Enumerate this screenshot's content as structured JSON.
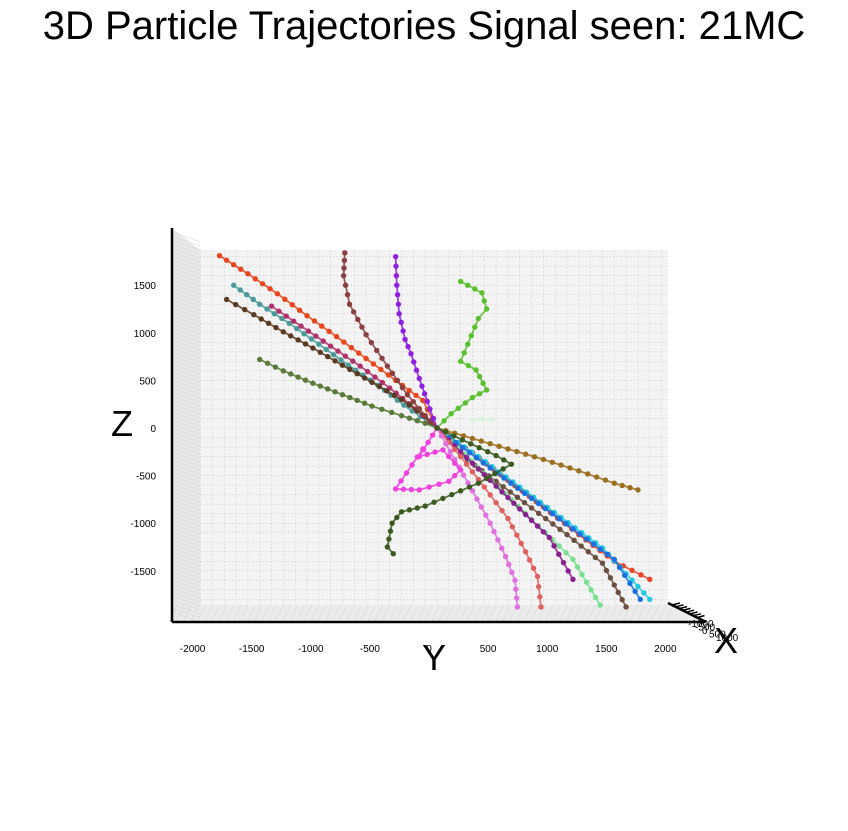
{
  "chart_data": {
    "type": "scatter",
    "title": "3D Particle Trajectories Signal seen: 21MC",
    "xlabel": "X",
    "ylabel": "Y",
    "zlabel": "Z",
    "view": "projected onto the Y-Z plane (X axis viewed end-on)",
    "y_ticks": [
      -2000,
      -1500,
      -1000,
      -500,
      0,
      500,
      1000,
      1500,
      2000
    ],
    "z_ticks": [
      -1500,
      -1000,
      -500,
      0,
      500,
      1000,
      1500
    ],
    "x_ticks": [
      -1000,
      -500,
      0,
      500,
      1000
    ],
    "y_range": [
      -2200,
      2000
    ],
    "z_range": [
      -2050,
      1850
    ],
    "grid": true,
    "background": "#f4f4f4",
    "series": [
      {
        "color": "#e8451c",
        "points": [
          [
            -1840,
            1810
          ],
          [
            -1600,
            1620
          ],
          [
            -1350,
            1410
          ],
          [
            -1100,
            1180
          ],
          [
            -850,
            960
          ],
          [
            -600,
            730
          ],
          [
            -350,
            500
          ],
          [
            -120,
            290
          ],
          [
            0,
            0
          ]
        ]
      },
      {
        "color": "#4a9a9a",
        "points": [
          [
            -1720,
            1500
          ],
          [
            -1500,
            1300
          ],
          [
            -1250,
            1100
          ],
          [
            -1000,
            880
          ],
          [
            -750,
            660
          ],
          [
            -500,
            450
          ],
          [
            -280,
            240
          ],
          [
            0,
            0
          ]
        ]
      },
      {
        "color": "#b0306a",
        "points": [
          [
            -1400,
            1280
          ],
          [
            -1150,
            1070
          ],
          [
            -900,
            860
          ],
          [
            -650,
            650
          ],
          [
            -400,
            420
          ],
          [
            -180,
            200
          ],
          [
            0,
            0
          ]
        ]
      },
      {
        "color": "#5a3a20",
        "points": [
          [
            -1780,
            1350
          ],
          [
            -1550,
            1190
          ],
          [
            -1300,
            1010
          ],
          [
            -1050,
            840
          ],
          [
            -800,
            660
          ],
          [
            -550,
            480
          ],
          [
            -300,
            300
          ],
          [
            -100,
            120
          ],
          [
            0,
            0
          ]
        ]
      },
      {
        "color": "#5a7a3a",
        "points": [
          [
            -1500,
            720
          ],
          [
            -1300,
            600
          ],
          [
            -1050,
            470
          ],
          [
            -800,
            350
          ],
          [
            -550,
            230
          ],
          [
            -300,
            130
          ],
          [
            -100,
            50
          ],
          [
            0,
            0
          ]
        ]
      },
      {
        "color": "#8a4040",
        "points": [
          [
            -780,
            1840
          ],
          [
            -790,
            1600
          ],
          [
            -740,
            1300
          ],
          [
            -600,
            980
          ],
          [
            -420,
            650
          ],
          [
            -250,
            350
          ],
          [
            -100,
            130
          ],
          [
            0,
            0
          ]
        ]
      },
      {
        "color": "#9020e0",
        "points": [
          [
            -350,
            1800
          ],
          [
            -340,
            1500
          ],
          [
            -320,
            1200
          ],
          [
            -270,
            930
          ],
          [
            -220,
            780
          ],
          [
            -150,
            520
          ],
          [
            -60,
            200
          ],
          [
            0,
            0
          ]
        ]
      },
      {
        "color": "#5ac030",
        "points": [
          [
            200,
            1540
          ],
          [
            380,
            1420
          ],
          [
            420,
            1250
          ],
          [
            350,
            1150
          ],
          [
            200,
            700
          ],
          [
            330,
            610
          ],
          [
            420,
            400
          ],
          [
            300,
            320
          ],
          [
            120,
            150
          ],
          [
            0,
            0
          ]
        ]
      },
      {
        "color": "#dcf2dc",
        "points": [
          [
            300,
            80
          ],
          [
            380,
            95
          ],
          [
            460,
            90
          ]
        ]
      },
      {
        "color": "#9a7020",
        "points": [
          [
            0,
            0
          ],
          [
            300,
            -110
          ],
          [
            600,
            -220
          ],
          [
            900,
            -330
          ],
          [
            1200,
            -450
          ],
          [
            1500,
            -580
          ],
          [
            1700,
            -650
          ]
        ]
      },
      {
        "color": "#e8452a",
        "points": [
          [
            0,
            0
          ],
          [
            300,
            -260
          ],
          [
            600,
            -550
          ],
          [
            900,
            -830
          ],
          [
            1200,
            -1120
          ],
          [
            1500,
            -1400
          ],
          [
            1800,
            -1590
          ]
        ]
      },
      {
        "color": "#20c8e0",
        "points": [
          [
            0,
            0
          ],
          [
            350,
            -300
          ],
          [
            700,
            -620
          ],
          [
            1050,
            -940
          ],
          [
            1400,
            -1260
          ],
          [
            1800,
            -1800
          ]
        ]
      },
      {
        "color": "#1a70e0",
        "points": [
          [
            100,
            -100
          ],
          [
            450,
            -420
          ],
          [
            800,
            -740
          ],
          [
            1150,
            -1060
          ],
          [
            1500,
            -1380
          ],
          [
            1720,
            -1800
          ]
        ]
      },
      {
        "color": "#6a5040",
        "points": [
          [
            200,
            -280
          ],
          [
            500,
            -560
          ],
          [
            800,
            -840
          ],
          [
            1100,
            -1120
          ],
          [
            1400,
            -1420
          ],
          [
            1600,
            -1880
          ]
        ]
      },
      {
        "color": "#7ae090",
        "points": [
          [
            0,
            0
          ],
          [
            400,
            -480
          ],
          [
            800,
            -960
          ],
          [
            1150,
            -1380
          ],
          [
            1380,
            -1860
          ]
        ]
      },
      {
        "color": "#8a2090",
        "points": [
          [
            0,
            0
          ],
          [
            200,
            -250
          ],
          [
            450,
            -550
          ],
          [
            700,
            -850
          ],
          [
            950,
            -1150
          ],
          [
            1150,
            -1590
          ]
        ]
      },
      {
        "color": "#e06060",
        "points": [
          [
            0,
            0
          ],
          [
            200,
            -300
          ],
          [
            400,
            -620
          ],
          [
            600,
            -950
          ],
          [
            750,
            -1300
          ],
          [
            850,
            -1560
          ],
          [
            880,
            -1880
          ]
        ]
      },
      {
        "color": "#e070e0",
        "points": [
          [
            0,
            0
          ],
          [
            150,
            -330
          ],
          [
            300,
            -660
          ],
          [
            450,
            -1000
          ],
          [
            580,
            -1350
          ],
          [
            660,
            -1600
          ],
          [
            680,
            -1880
          ]
        ]
      },
      {
        "color": "#f040e0",
        "points": [
          [
            0,
            0
          ],
          [
            -150,
            -300
          ],
          [
            50,
            -230
          ],
          [
            200,
            -440
          ],
          [
            100,
            -560
          ],
          [
            -150,
            -650
          ],
          [
            -350,
            -640
          ],
          [
            -120,
            -220
          ]
        ]
      },
      {
        "color": "#3a5a20",
        "points": [
          [
            0,
            0
          ],
          [
            500,
            -290
          ],
          [
            630,
            -380
          ],
          [
            350,
            -580
          ],
          [
            -100,
            -820
          ],
          [
            -300,
            -880
          ],
          [
            -380,
            -1000
          ],
          [
            -420,
            -1250
          ],
          [
            -370,
            -1320
          ]
        ]
      }
    ]
  }
}
